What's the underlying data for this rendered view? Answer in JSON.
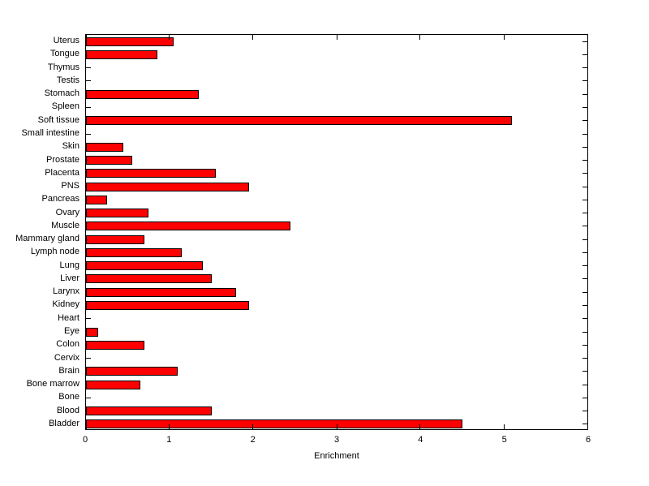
{
  "chart_data": {
    "type": "bar",
    "orientation": "horizontal",
    "title": "",
    "xlabel": "Enrichment",
    "ylabel": "",
    "xlim": [
      0,
      6
    ],
    "xticks": [
      0,
      1,
      2,
      3,
      4,
      5,
      6
    ],
    "grid": false,
    "legend": null,
    "bar_color": "#ff0000",
    "bar_edge_color": "#000000",
    "categories_top_to_bottom": [
      "Uterus",
      "Tongue",
      "Thymus",
      "Testis",
      "Stomach",
      "Spleen",
      "Soft tissue",
      "Small intestine",
      "Skin",
      "Prostate",
      "Placenta",
      "PNS",
      "Pancreas",
      "Ovary",
      "Muscle",
      "Mammary gland",
      "Lymph node",
      "Lung",
      "Liver",
      "Larynx",
      "Kidney",
      "Heart",
      "Eye",
      "Colon",
      "Cervix",
      "Brain",
      "Bone marrow",
      "Bone",
      "Blood",
      "Bladder"
    ],
    "values": [
      1.05,
      0.85,
      0,
      0,
      1.35,
      0,
      5.1,
      0,
      0.45,
      0.55,
      1.55,
      1.95,
      0.25,
      0.75,
      2.45,
      0.7,
      1.15,
      1.4,
      1.5,
      1.8,
      1.95,
      0,
      0.15,
      0.7,
      0,
      1.1,
      0.65,
      0,
      1.5,
      4.5
    ]
  }
}
